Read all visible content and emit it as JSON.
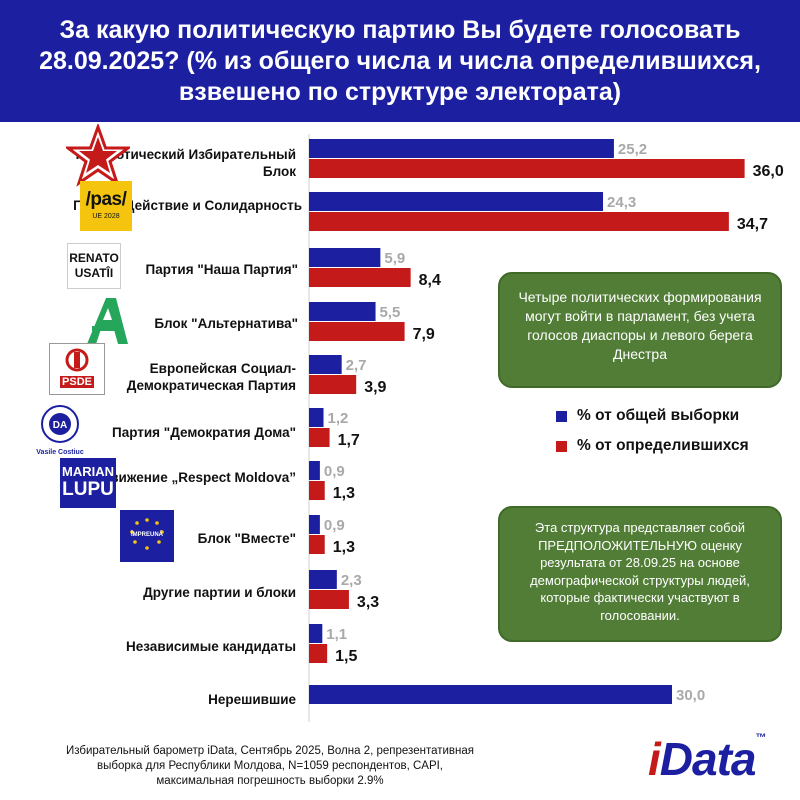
{
  "header": {
    "title": "За какую политическую партию Вы будете голосовать 28.09.2025? (% из общего числа и числа определившихся, взвешено по структуре электората)"
  },
  "chart_data": {
    "type": "bar",
    "orientation": "horizontal",
    "categories": [
      "Патриотический Избирательный Блок",
      "Партия Действие и Солидарность",
      "Партия \"Наша Партия\"",
      "Блок \"Альтернатива\"",
      "Европейская Социал-Демократическая Партия",
      "Партия \"Демократия Дома\"",
      "Движение „Respect Moldova”",
      "Блок \"Вместе\"",
      "Другие партии и блоки",
      "Независимые кандидаты",
      "Нерешившие"
    ],
    "series": [
      {
        "name": "% от общей выборки",
        "color": "#1b1fa0",
        "values": [
          25.2,
          24.3,
          5.9,
          5.5,
          2.7,
          1.2,
          0.9,
          0.9,
          2.3,
          1.1,
          30.0
        ],
        "labels": [
          "25,2",
          "24,3",
          "5,9",
          "5,5",
          "2,7",
          "1,2",
          "0,9",
          "0,9",
          "2,3",
          "1,1",
          "30,0"
        ]
      },
      {
        "name": "% от определившихся",
        "color": "#c51a1a",
        "values": [
          36.0,
          34.7,
          8.4,
          7.9,
          3.9,
          1.7,
          1.3,
          1.3,
          3.3,
          1.5,
          null
        ],
        "labels": [
          "36,0",
          "34,7",
          "8,4",
          "7,9",
          "3,9",
          "1,7",
          "1,3",
          "1,3",
          "3,3",
          "1,5",
          ""
        ]
      }
    ],
    "xlim": [
      0,
      36
    ],
    "grid": false,
    "legend_position": "right"
  },
  "logos": {
    "pas": {
      "main": "/pas/",
      "sub": "UE 2028"
    },
    "renato": {
      "line1": "RENATO",
      "line2": "USATÎI"
    },
    "psde": {
      "text": "PSDE"
    },
    "da": {
      "text": "DA",
      "caption": "Vasile Costiuc",
      "ring": "DEMOCRAȚIA ACASĂ"
    },
    "lupu": {
      "line1": "MARIAN",
      "line2": "LUPU"
    },
    "vmeste": {
      "text": "ÎMPREUNĂ"
    }
  },
  "callouts": {
    "first": "Четыре политических формирования могут войти в парламент, без учета голосов диаспоры и левого берега Днестра",
    "second": "Эта структура представляет собой ПРЕДПОЛОЖИТЕЛЬНУЮ оценку результата от 28.09.25 на основе демографической структуры людей, которые фактически участвуют в голосовании."
  },
  "legend": {
    "total": "% от общей выборки",
    "decided": "% от определившихся"
  },
  "footer": {
    "note": "Избирательный барометр iData, Сентябрь 2025, Волна 2, репрезентативная выборка для Республики Молдова, N=1059 респондентов, CAPI, максимальная погрешность выборки 2.9%",
    "brand_i": "i",
    "brand_rest": "Data",
    "brand_tm": "™"
  }
}
